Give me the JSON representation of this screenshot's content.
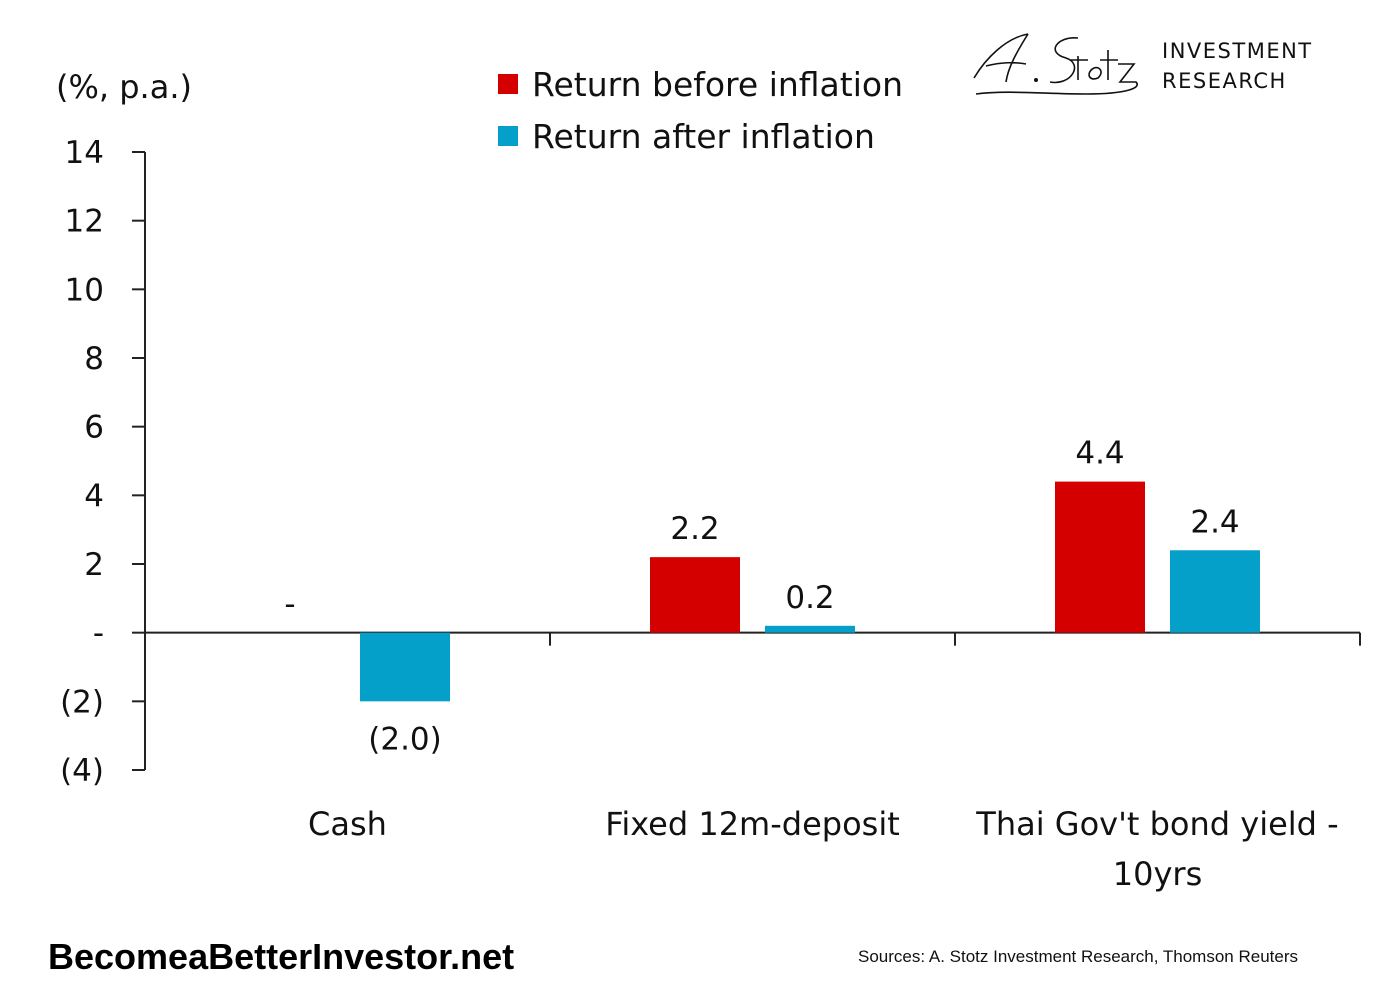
{
  "branding": {
    "logo_script": "A. Stotz",
    "logo_line1": "INVESTMENT",
    "logo_line2": "RESEARCH",
    "site": "BecomeaBetterInvestor.net",
    "sources": "Sources: A. Stotz Investment Research, Thomson Reuters"
  },
  "chart_data": {
    "type": "bar",
    "title": "",
    "ylabel": "(%, p.a.)",
    "xlabel": "",
    "ylim": [
      -4,
      14
    ],
    "yticks": [
      14,
      12,
      10,
      8,
      6,
      4,
      2,
      0,
      -2,
      -4
    ],
    "ytick_labels": [
      "14",
      "12",
      "10",
      "8",
      "6",
      "4",
      "2",
      "-",
      "(2)",
      "(4)"
    ],
    "categories": [
      "Cash",
      "Fixed 12m-deposit",
      "Thai Gov't bond yield - 10yrs"
    ],
    "category_lines": [
      [
        "Cash"
      ],
      [
        "Fixed 12m-deposit"
      ],
      [
        "Thai Gov't bond yield -",
        "10yrs"
      ]
    ],
    "legend_position": "top-center",
    "grid": false,
    "series": [
      {
        "name": "Return before inflation",
        "color": "#d40000",
        "values": [
          0,
          2.2,
          4.4
        ],
        "labels": [
          "-",
          "2.2",
          "4.4"
        ]
      },
      {
        "name": "Return after inflation",
        "color": "#05a0c9",
        "values": [
          -2.0,
          0.2,
          2.4
        ],
        "labels": [
          "(2.0)",
          "0.2",
          "2.4"
        ]
      }
    ]
  }
}
